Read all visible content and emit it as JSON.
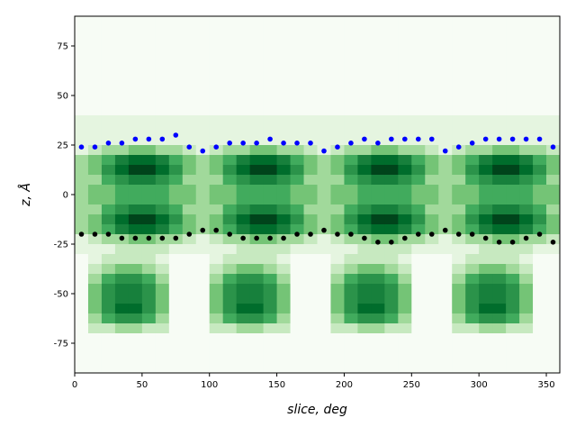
{
  "chart_data": [
    {
      "type": "heatmap",
      "xlabel": "slice, deg",
      "ylabel": "z, Å",
      "xlim": [
        0,
        360
      ],
      "ylim": [
        -90,
        90
      ],
      "x_ticks": [
        0,
        50,
        100,
        150,
        200,
        250,
        300,
        350
      ],
      "y_ticks": [
        -75,
        -50,
        -25,
        0,
        25,
        50,
        75
      ],
      "x_bin_width": 10,
      "z_bin_width": 5,
      "colormap": [
        "#f7fcf5",
        "#e5f5e0",
        "#c7e9c0",
        "#a1d99b",
        "#74c476",
        "#41ab5d",
        "#2b934a",
        "#17803c",
        "#006d2c",
        "#00441b"
      ],
      "intensity_rows_top_to_bottom": [
        "000000000000000000000000000000000000",
        "000000000000000000000000000000000000",
        "000000000000000000000000000000000000",
        "000000000000000000000000000000000000",
        "000000000000000000000000000000000000",
        "000000000000000000000000000000000000",
        "000000000000000000000000000000000000",
        "000000000000000000000000000000000000",
        "000000000000000000000000000000000000",
        "000000000000000000000000000000000000",
        "111111111111111111111111111111111111",
        "111111111111111111111111111111111111",
        "111111111111111111111111111111111111",
        "123344332123344332123344332123344332",
        "345788754345788754345788754345788754",
        "346899864346899864346899864346899864",
        "335677653335677653335677653335677653",
        "344555544344555544344555544344555544",
        "344555544344555544344555544344555544",
        "335677653335677653335677653335677653",
        "346899864346899864346899864346899864",
        "345788754345788754345788754345788754",
        "123344332123344332123344332123344332",
        "111222211111222211111222211111222211",
        "012222100012222100012222100012222100",
        "023443200023443200023443200023443200",
        "035665300035665300035665300035665300",
        "046776400046776400046776400046776400",
        "046776400046776400046776400046776400",
        "046886400046886400046886400046886400",
        "035665300035665300035665300035665300",
        "022332200022332200022332200022332200",
        "000000000000000000000000000000000000",
        "000000000000000000000000000000000000",
        "000000000000000000000000000000000000",
        "000000000000000000000000000000000000"
      ]
    },
    {
      "type": "scatter",
      "color": "#0000ff",
      "x": [
        5,
        15,
        25,
        35,
        45,
        55,
        65,
        75,
        85,
        95,
        105,
        115,
        125,
        135,
        145,
        155,
        165,
        175,
        185,
        195,
        205,
        215,
        225,
        235,
        245,
        255,
        265,
        275,
        285,
        295,
        305,
        315,
        325,
        335,
        345,
        355
      ],
      "y": [
        24,
        24,
        26,
        26,
        28,
        28,
        28,
        30,
        24,
        22,
        24,
        26,
        26,
        26,
        28,
        26,
        26,
        26,
        22,
        24,
        26,
        28,
        26,
        28,
        28,
        28,
        28,
        22,
        24,
        26,
        28,
        28,
        28,
        28,
        28,
        24
      ]
    },
    {
      "type": "scatter",
      "color": "#000000",
      "x": [
        5,
        15,
        25,
        35,
        45,
        55,
        65,
        75,
        85,
        95,
        105,
        115,
        125,
        135,
        145,
        155,
        165,
        175,
        185,
        195,
        205,
        215,
        225,
        235,
        245,
        255,
        265,
        275,
        285,
        295,
        305,
        315,
        325,
        335,
        345,
        355
      ],
      "y": [
        -20,
        -20,
        -20,
        -22,
        -22,
        -22,
        -22,
        -22,
        -20,
        -18,
        -18,
        -20,
        -22,
        -22,
        -22,
        -22,
        -20,
        -20,
        -18,
        -20,
        -20,
        -22,
        -24,
        -24,
        -22,
        -20,
        -20,
        -18,
        -20,
        -20,
        -22,
        -24,
        -24,
        -22,
        -20,
        -24
      ]
    }
  ]
}
